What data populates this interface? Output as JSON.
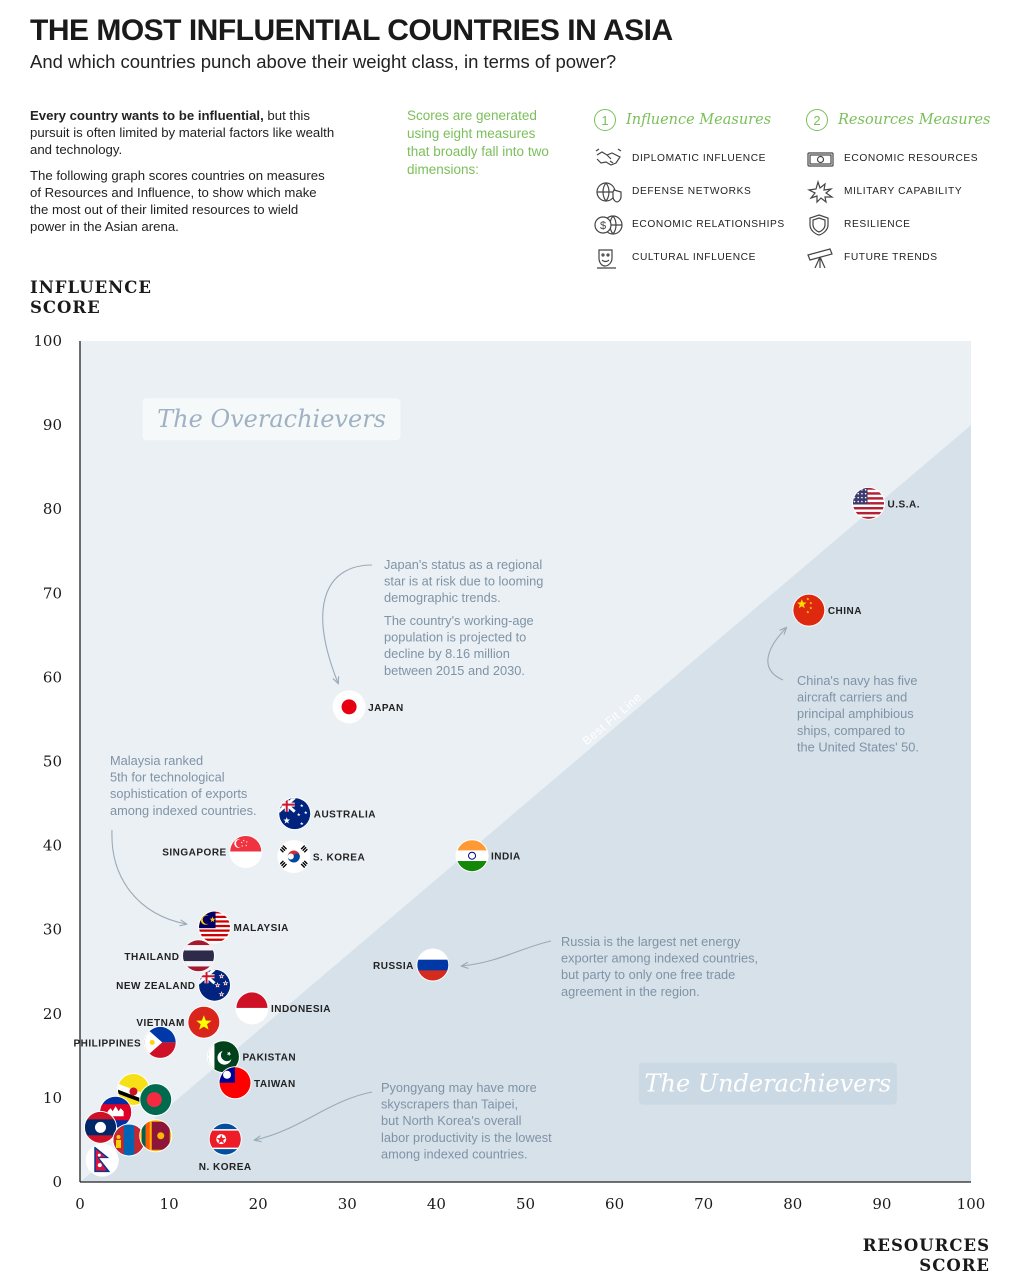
{
  "header": {
    "title": "THE MOST INFLUENTIAL COUNTRIES IN ASIA",
    "subtitle": "And which countries punch above their weight class, in terms of power?"
  },
  "intro": {
    "bold_lead": "Every country wants to be influential,",
    "p1_rest": " but this pursuit is often limited by material factors like wealth and technology.",
    "p2": "The following graph scores countries on measures of Resources and Influence, to show which make the most out of their limited resources to wield power in the Asian arena."
  },
  "scores_note": "Scores are generated using eight measures that broadly fall into two dimensions:",
  "legend": {
    "influence": {
      "number": "1",
      "title": "Influence Measures",
      "items": [
        {
          "label": "DIPLOMATIC INFLUENCE",
          "icon": "handshake-icon"
        },
        {
          "label": "DEFENSE NETWORKS",
          "icon": "globe-shield-icon"
        },
        {
          "label": "ECONOMIC RELATIONSHIPS",
          "icon": "dollar-globe-icon"
        },
        {
          "label": "CULTURAL INFLUENCE",
          "icon": "theater-mask-icon"
        }
      ]
    },
    "resources": {
      "number": "2",
      "title": "Resources Measures",
      "items": [
        {
          "label": "ECONOMIC RESOURCES",
          "icon": "banknote-icon"
        },
        {
          "label": "MILITARY CAPABILITY",
          "icon": "explosion-icon"
        },
        {
          "label": "RESILIENCE",
          "icon": "shield-icon"
        },
        {
          "label": "FUTURE TRENDS",
          "icon": "telescope-icon"
        }
      ]
    }
  },
  "chart_data": {
    "type": "scatter",
    "title": "",
    "xlabel": "RESOURCES SCORE",
    "xlabel_lines": [
      "RESOURCES",
      "SCORE"
    ],
    "ylabel": "INFLUENCE SCORE",
    "ylabel_lines": [
      "INFLUENCE",
      "SCORE"
    ],
    "xlim": [
      0,
      100
    ],
    "ylim": [
      0,
      100
    ],
    "xticks": [
      0,
      10,
      20,
      30,
      40,
      50,
      60,
      70,
      80,
      90,
      100
    ],
    "yticks": [
      0,
      10,
      20,
      30,
      40,
      50,
      60,
      70,
      80,
      90,
      100
    ],
    "grid": false,
    "best_fit_line": {
      "label": "Best Fit Line",
      "from": [
        0,
        0
      ],
      "to": [
        100,
        90
      ]
    },
    "regions": [
      {
        "label": "The Overachievers",
        "position": "upper-left"
      },
      {
        "label": "The Underachievers",
        "position": "lower-right"
      }
    ],
    "points": [
      {
        "label": "U.S.A.",
        "x": 88.5,
        "y": 80.7,
        "flag": "usa",
        "label_side": "right"
      },
      {
        "label": "CHINA",
        "x": 81.8,
        "y": 68.0,
        "flag": "china",
        "label_side": "right"
      },
      {
        "label": "JAPAN",
        "x": 30.2,
        "y": 56.5,
        "flag": "japan",
        "label_side": "right"
      },
      {
        "label": "INDIA",
        "x": 44.0,
        "y": 38.8,
        "flag": "india",
        "label_side": "right"
      },
      {
        "label": "AUSTRALIA",
        "x": 24.1,
        "y": 43.8,
        "flag": "australia",
        "label_side": "right"
      },
      {
        "label": "S. KOREA",
        "x": 24.0,
        "y": 38.7,
        "flag": "skorea",
        "label_side": "right"
      },
      {
        "label": "SINGAPORE",
        "x": 18.6,
        "y": 39.3,
        "flag": "singapore",
        "label_side": "left"
      },
      {
        "label": "MALAYSIA",
        "x": 15.1,
        "y": 30.3,
        "flag": "malaysia",
        "label_side": "right"
      },
      {
        "label": "THAILAND",
        "x": 13.3,
        "y": 26.9,
        "flag": "thailand",
        "label_side": "left"
      },
      {
        "label": "RUSSIA",
        "x": 39.6,
        "y": 25.8,
        "flag": "russia",
        "label_side": "left"
      },
      {
        "label": "NEW ZEALAND",
        "x": 15.1,
        "y": 23.4,
        "flag": "newzealand",
        "label_side": "left"
      },
      {
        "label": "INDONESIA",
        "x": 19.3,
        "y": 20.7,
        "flag": "indonesia",
        "label_side": "right"
      },
      {
        "label": "VIETNAM",
        "x": 13.9,
        "y": 19.0,
        "flag": "vietnam",
        "label_side": "left"
      },
      {
        "label": "PHILIPPINES",
        "x": 9.0,
        "y": 16.6,
        "flag": "philippines",
        "label_side": "left"
      },
      {
        "label": "PAKISTAN",
        "x": 16.1,
        "y": 14.9,
        "flag": "pakistan",
        "label_side": "right"
      },
      {
        "label": "TAIWAN",
        "x": 17.4,
        "y": 11.8,
        "flag": "taiwan",
        "label_side": "right"
      },
      {
        "label": "N. KOREA",
        "x": 16.3,
        "y": 5.1,
        "flag": "nkorea",
        "label_side": "below"
      },
      {
        "label": "",
        "x": 6.0,
        "y": 11.0,
        "flag": "brunei"
      },
      {
        "label": "",
        "x": 8.5,
        "y": 9.8,
        "flag": "bangladesh"
      },
      {
        "label": "",
        "x": 4.0,
        "y": 8.3,
        "flag": "cambodia"
      },
      {
        "label": "",
        "x": 2.3,
        "y": 6.5,
        "flag": "laos"
      },
      {
        "label": "",
        "x": 5.5,
        "y": 5.0,
        "flag": "mongolia"
      },
      {
        "label": "",
        "x": 8.5,
        "y": 5.5,
        "flag": "srilanka"
      },
      {
        "label": "",
        "x": 2.5,
        "y": 2.6,
        "flag": "nepal"
      }
    ],
    "annotations": [
      {
        "target": "JAPAN",
        "lines": [
          "Japan's status as a regional",
          "star is at risk due to looming",
          "demographic trends."
        ]
      },
      {
        "target": "JAPAN",
        "lines": [
          "The country's working-age",
          "population is projected to",
          "decline by 8.16 million",
          "between 2015 and 2030."
        ]
      },
      {
        "target": "CHINA",
        "lines": [
          "China's navy has five",
          "aircraft carriers and",
          "principal amphibious",
          "ships, compared to",
          "the United States' 50."
        ]
      },
      {
        "target": "MALAYSIA",
        "lines": [
          "Malaysia ranked",
          "5th for technological",
          "sophistication of exports",
          "among indexed countries."
        ]
      },
      {
        "target": "RUSSIA",
        "lines": [
          "Russia is the largest net energy",
          "exporter among indexed countries,",
          "but party to only one free trade",
          "agreement in the region."
        ]
      },
      {
        "target": "N. KOREA",
        "lines": [
          "Pyongyang may have more",
          "skyscrapers than Taipei,",
          "but North Korea's overall",
          "labor productivity is the lowest",
          "among indexed countries."
        ]
      }
    ]
  },
  "colors": {
    "accent_green": "#7bbf5a",
    "upper_region": "#eaf0f4",
    "lower_region": "#d6e1ea",
    "note_text": "#7f93a6",
    "region_text": "#9fb1c2"
  }
}
